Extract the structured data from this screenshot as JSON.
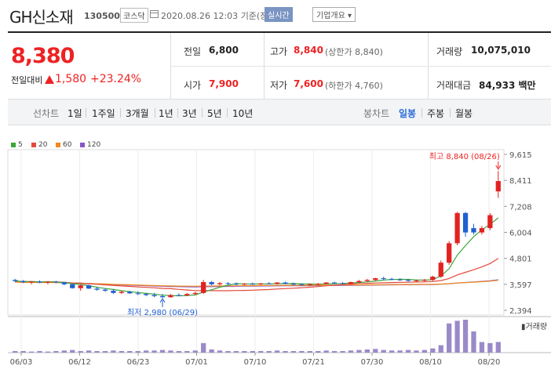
{
  "stock": {
    "name": "GH신소재",
    "code": "130500",
    "market": "코스닥",
    "datetime": "2020.08.26 12:03",
    "basis": "기준(장중)",
    "realtime_label": "실시간",
    "info_label": "기업개요 ▾"
  },
  "quote": {
    "price": "8,380",
    "change_label": "전일대비",
    "change": "1,580",
    "change_pct": "+23.24%",
    "prev_label": "전일",
    "prev": "6,800",
    "open_label": "시가",
    "open": "7,900",
    "high_label": "고가",
    "high": "8,840",
    "upper_limit": "(상한가 8,840)",
    "low_label": "저가",
    "low": "7,600",
    "lower_limit": "(하한가 4,760)",
    "volume_label": "거래량",
    "volume": "10,075,010",
    "amount_label": "거래대금",
    "amount": "84,933 백만"
  },
  "tabs": {
    "line_label": "선차트",
    "line_periods": [
      "1일",
      "1주일",
      "3개월",
      "1년",
      "3년",
      "5년",
      "10년"
    ],
    "candle_label": "봉차트",
    "candle_periods": [
      "일봉",
      "주봉",
      "월봉"
    ],
    "active": "일봉"
  },
  "colors": {
    "up": "#e22222",
    "down": "#2060d0",
    "accent": "#2b6cd9"
  },
  "chart_data": {
    "type": "candlestick",
    "legend": [
      {
        "name": "5",
        "color": "#3aa53a"
      },
      {
        "name": "20",
        "color": "#e24a3a"
      },
      {
        "name": "60",
        "color": "#f08a1c"
      },
      {
        "name": "120",
        "color": "#8a55c8"
      }
    ],
    "y_ticks": [
      "9,615",
      "8,411",
      "7,208",
      "6,004",
      "4,801",
      "3,597",
      "2,394"
    ],
    "x_ticks": [
      "06/03",
      "06/12",
      "06/23",
      "07/01",
      "07/10",
      "07/21",
      "07/30",
      "08/10",
      "08/20"
    ],
    "y_range": [
      2394,
      9615
    ],
    "annotations": {
      "high": "최고 8,840 (08/26)",
      "low": "최저 2,980 (06/29)"
    },
    "volume_label": "거래량",
    "candles": [
      [
        3800,
        3850,
        3700,
        3750
      ],
      [
        3750,
        3800,
        3650,
        3700
      ],
      [
        3700,
        3750,
        3600,
        3720
      ],
      [
        3720,
        3780,
        3650,
        3680
      ],
      [
        3680,
        3750,
        3600,
        3720
      ],
      [
        3720,
        3760,
        3650,
        3690
      ],
      [
        3690,
        3720,
        3550,
        3600
      ],
      [
        3600,
        3620,
        3400,
        3420
      ],
      [
        3420,
        3600,
        3300,
        3550
      ],
      [
        3550,
        3580,
        3380,
        3400
      ],
      [
        3400,
        3480,
        3300,
        3350
      ],
      [
        3350,
        3420,
        3250,
        3300
      ],
      [
        3300,
        3380,
        3150,
        3200
      ],
      [
        3200,
        3300,
        3150,
        3250
      ],
      [
        3250,
        3300,
        3150,
        3180
      ],
      [
        3180,
        3280,
        3100,
        3150
      ],
      [
        3150,
        3200,
        3050,
        3100
      ],
      [
        3100,
        3200,
        3000,
        3050
      ],
      [
        3050,
        3150,
        2980,
        3000
      ],
      [
        3000,
        3150,
        2980,
        3100
      ],
      [
        3100,
        3180,
        3050,
        3080
      ],
      [
        3080,
        3200,
        3050,
        3150
      ],
      [
        3150,
        3250,
        3100,
        3200
      ],
      [
        3200,
        3800,
        3150,
        3700
      ],
      [
        3700,
        3750,
        3550,
        3600
      ],
      [
        3600,
        3700,
        3550,
        3650
      ],
      [
        3650,
        3700,
        3580,
        3620
      ],
      [
        3620,
        3680,
        3560,
        3600
      ],
      [
        3600,
        3650,
        3550,
        3620
      ],
      [
        3620,
        3680,
        3580,
        3600
      ],
      [
        3600,
        3660,
        3560,
        3640
      ],
      [
        3640,
        3700,
        3600,
        3620
      ],
      [
        3620,
        3700,
        3580,
        3680
      ],
      [
        3680,
        3720,
        3600,
        3620
      ],
      [
        3620,
        3680,
        3560,
        3600
      ],
      [
        3600,
        3650,
        3550,
        3580
      ],
      [
        3580,
        3640,
        3520,
        3600
      ],
      [
        3600,
        3660,
        3560,
        3620
      ],
      [
        3620,
        3700,
        3600,
        3680
      ],
      [
        3680,
        3720,
        3620,
        3650
      ],
      [
        3650,
        3700,
        3600,
        3630
      ],
      [
        3630,
        3720,
        3600,
        3700
      ],
      [
        3700,
        3800,
        3650,
        3750
      ],
      [
        3750,
        3850,
        3700,
        3800
      ],
      [
        3800,
        3900,
        3750,
        3880
      ],
      [
        3880,
        3950,
        3800,
        3850
      ],
      [
        3850,
        3900,
        3780,
        3820
      ],
      [
        3820,
        3880,
        3760,
        3800
      ],
      [
        3800,
        3850,
        3700,
        3760
      ],
      [
        3760,
        3820,
        3700,
        3780
      ],
      [
        3780,
        3850,
        3720,
        3800
      ],
      [
        3800,
        4000,
        3750,
        3950
      ],
      [
        3950,
        4700,
        3900,
        4600
      ],
      [
        4600,
        5600,
        4500,
        5500
      ],
      [
        5500,
        6950,
        5400,
        6900
      ],
      [
        6900,
        6950,
        5800,
        6000
      ],
      [
        6200,
        6400,
        5900,
        6000
      ],
      [
        6000,
        6300,
        5900,
        6200
      ],
      [
        6200,
        6900,
        6100,
        6800
      ],
      [
        7900,
        8840,
        7600,
        8380
      ]
    ],
    "volume": [
      3,
      3,
      2,
      3,
      2,
      3,
      4,
      5,
      3,
      4,
      3,
      3,
      4,
      3,
      3,
      3,
      4,
      4,
      5,
      4,
      3,
      3,
      4,
      18,
      6,
      4,
      3,
      3,
      3,
      3,
      3,
      3,
      4,
      3,
      3,
      3,
      3,
      3,
      4,
      3,
      3,
      4,
      5,
      6,
      7,
      5,
      4,
      4,
      5,
      4,
      5,
      8,
      14,
      55,
      60,
      62,
      40,
      20,
      18,
      20
    ]
  }
}
